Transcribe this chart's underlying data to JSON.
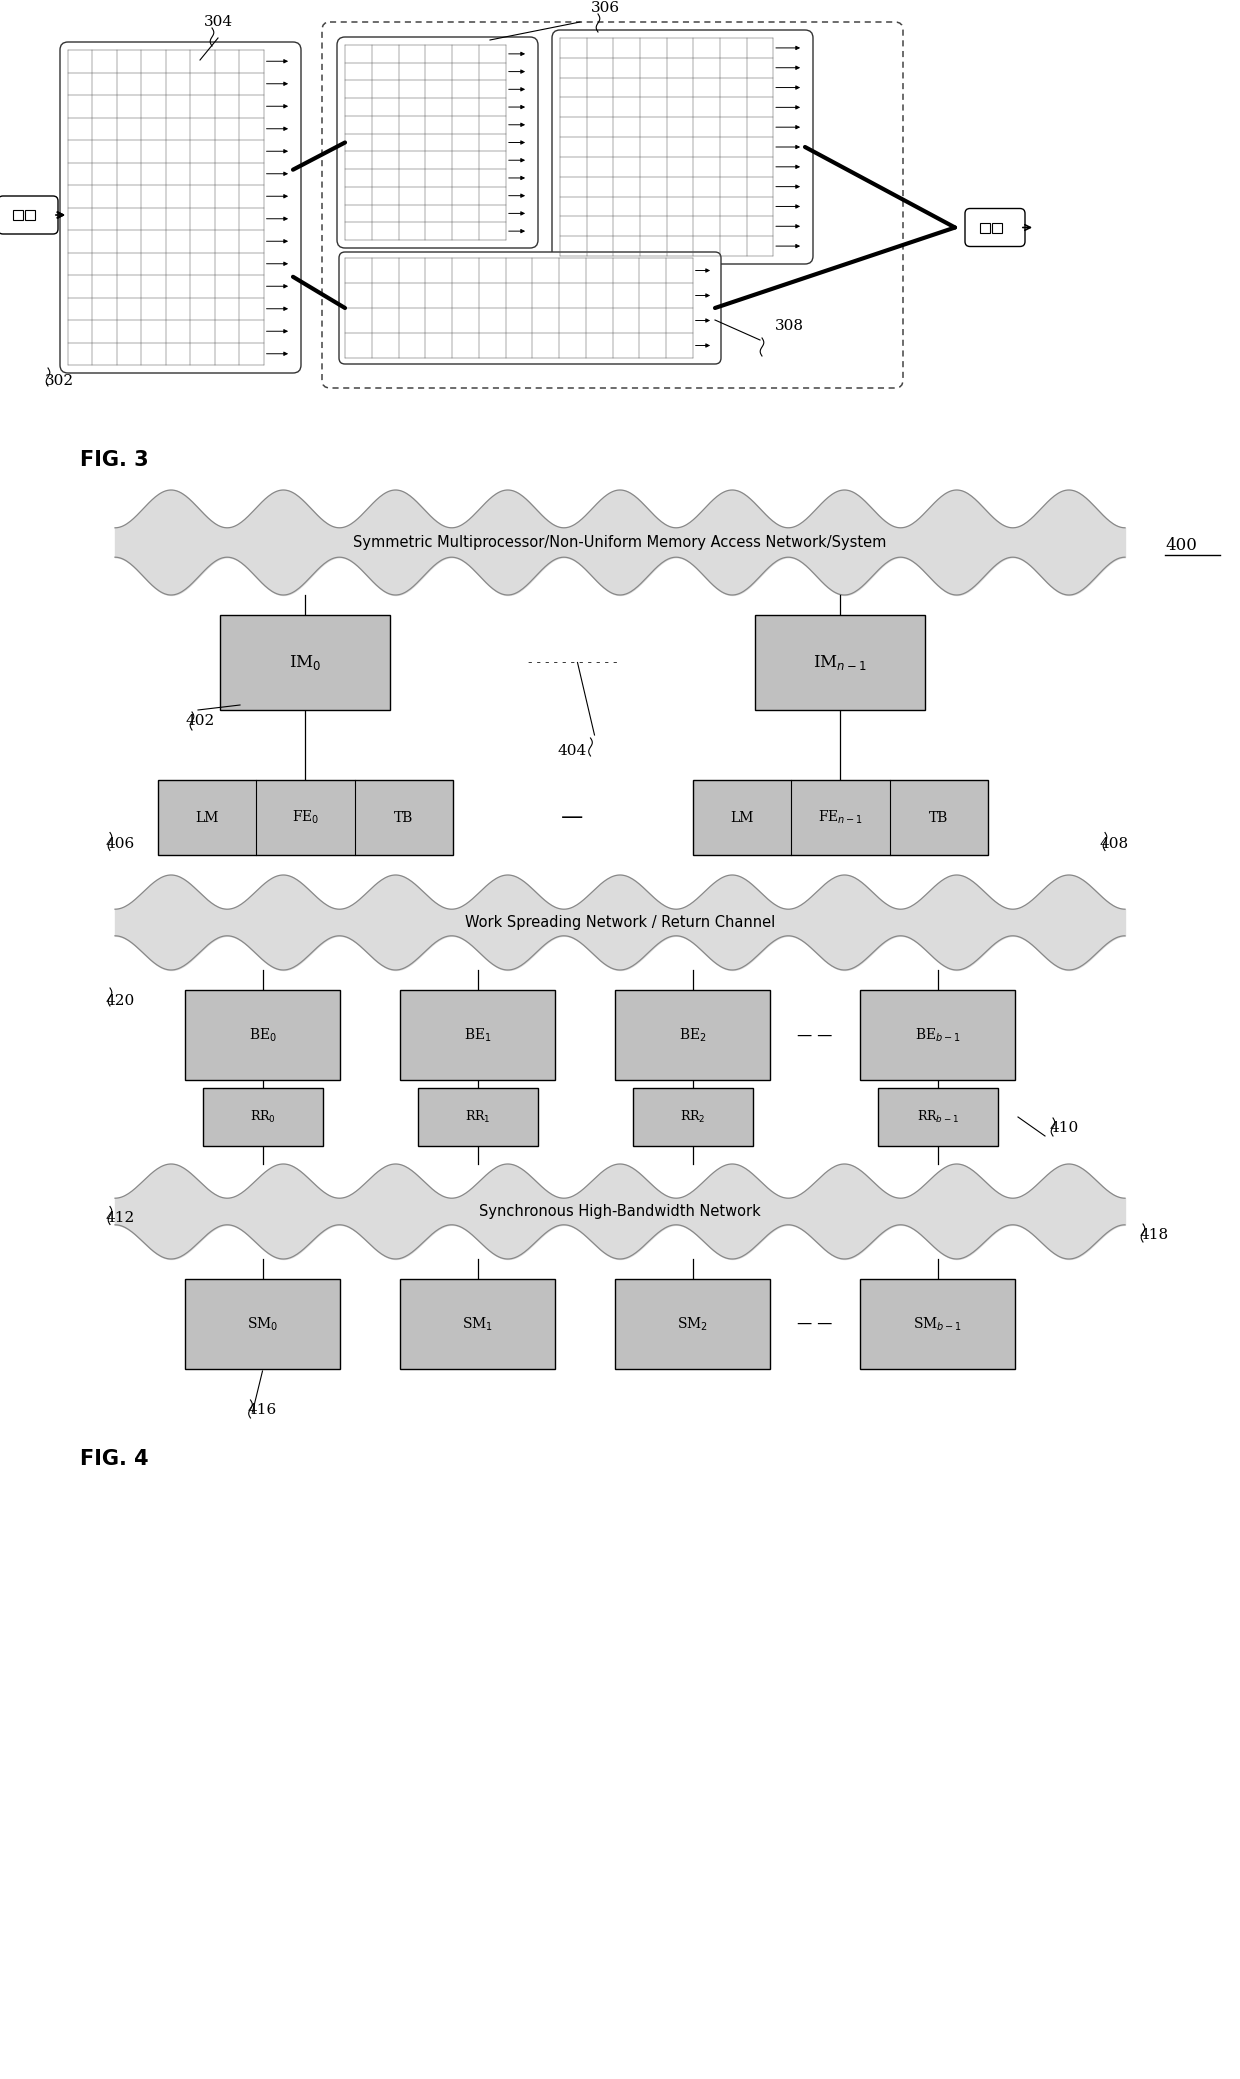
{
  "fig_width": 12.4,
  "fig_height": 20.79,
  "bg_color": "#ffffff",
  "fig3": {
    "label": "FIG. 3",
    "ref_302": "302",
    "ref_304": "304",
    "ref_306": "306",
    "ref_308": "308"
  },
  "fig4": {
    "label": "FIG. 4",
    "ref_400": "400",
    "ref_402": "402",
    "ref_404": "404",
    "ref_406": "406",
    "ref_408": "408",
    "ref_410": "410",
    "ref_412": "412",
    "ref_416": "416",
    "ref_418": "418",
    "ref_420": "420",
    "cloud_top_text": "Symmetric Multiprocessor/Non-Uniform Memory Access Network/System",
    "cloud_mid_text": "Work Spreading Network / Return Channel",
    "cloud_bot_text": "Synchronous High-Bandwidth Network",
    "im0_label": "IM$_0$",
    "im_n1_label": "IM$_{n-1}$",
    "dots_label": "- - - - - - - - - - -",
    "fe0_labels": [
      "LM",
      "FE$_0$",
      "TB"
    ],
    "fen1_labels": [
      "LM",
      "FE$_{n-1}$",
      "TB"
    ],
    "be_labels": [
      "BE$_0$",
      "BE$_1$",
      "BE$_2$",
      "BE$_{b-1}$"
    ],
    "rr_labels": [
      "RR$_0$",
      "RR$_1$",
      "RR$_2$",
      "RR$_{b-1}$"
    ],
    "sm_labels": [
      "SM$_0$",
      "SM$_1$",
      "SM$_2$",
      "SM$_{b-1}$"
    ]
  }
}
